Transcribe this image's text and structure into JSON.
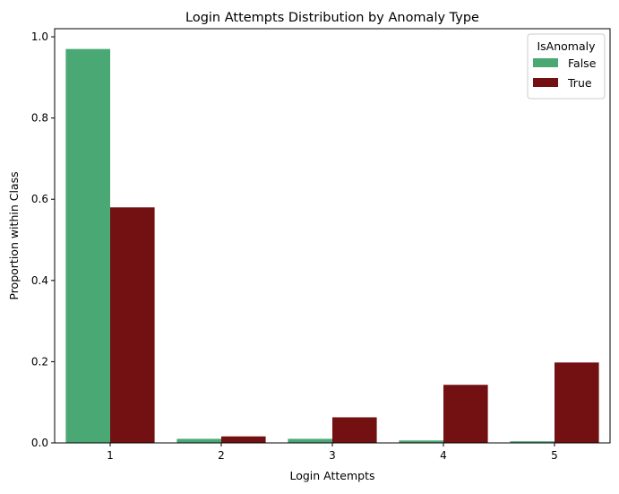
{
  "chart_data": {
    "type": "bar",
    "title": "Login Attempts Distribution by Anomaly Type",
    "xlabel": "Login Attempts",
    "ylabel": "Proportion within Class",
    "categories": [
      "1",
      "2",
      "3",
      "4",
      "5"
    ],
    "series": [
      {
        "name": "False",
        "color": "#4aa874",
        "values": [
          0.97,
          0.01,
          0.01,
          0.006,
          0.004
        ]
      },
      {
        "name": "True",
        "color": "#721012",
        "values": [
          0.58,
          0.016,
          0.063,
          0.143,
          0.198
        ]
      }
    ],
    "ylim": [
      0,
      1.02
    ],
    "yticks": [
      0.0,
      0.2,
      0.4,
      0.6,
      0.8,
      1.0
    ],
    "ytick_labels": [
      "0.0",
      "0.2",
      "0.4",
      "0.6",
      "0.8",
      "1.0"
    ],
    "legend": {
      "title": "IsAnomaly",
      "position": "top-right"
    },
    "grid": false
  }
}
